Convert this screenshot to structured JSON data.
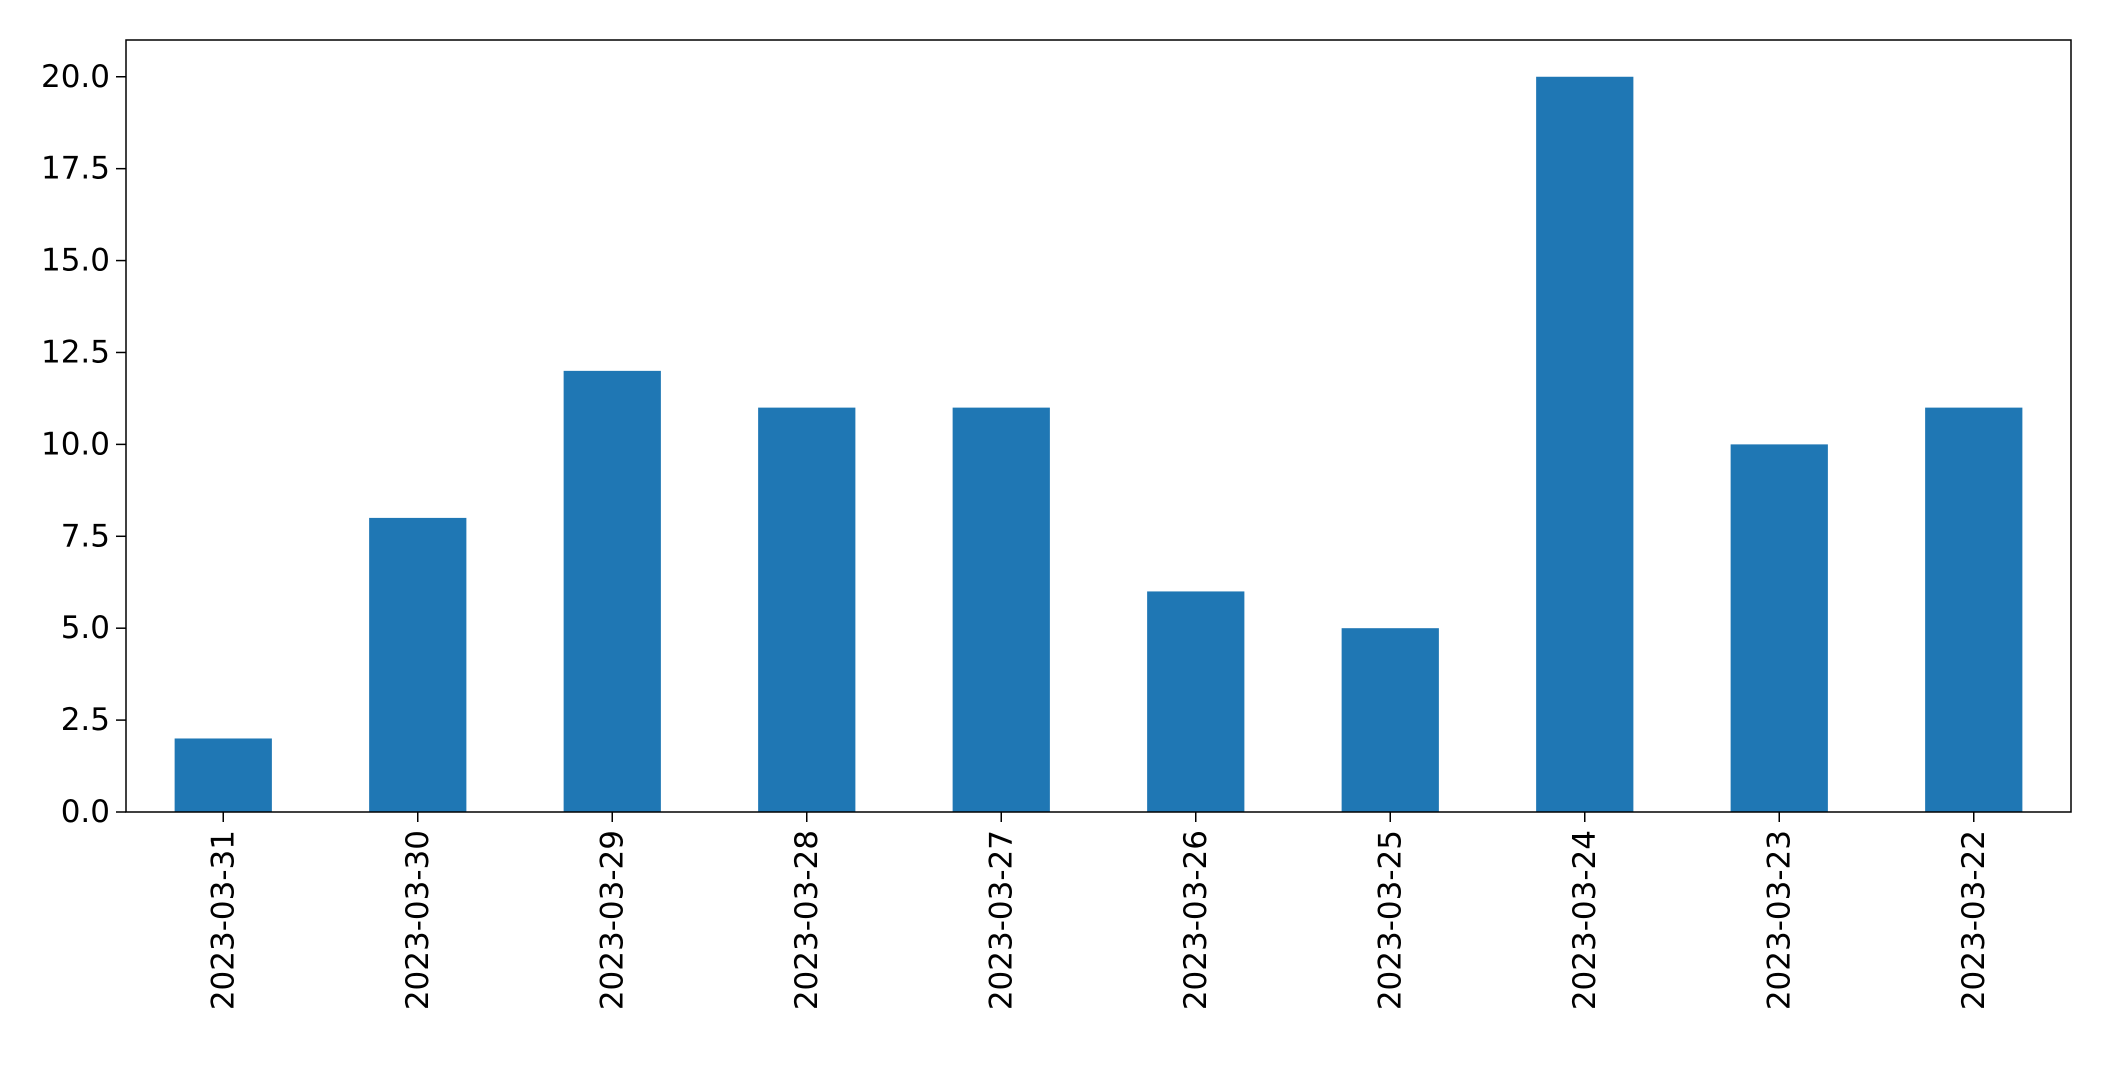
{
  "chart_data": {
    "type": "bar",
    "title": "",
    "xlabel": "",
    "ylabel": "",
    "categories": [
      "2023-03-31",
      "2023-03-30",
      "2023-03-29",
      "2023-03-28",
      "2023-03-27",
      "2023-03-26",
      "2023-03-25",
      "2023-03-24",
      "2023-03-23",
      "2023-03-22"
    ],
    "values": [
      2,
      8,
      12,
      11,
      11,
      6,
      5,
      20,
      10,
      11
    ],
    "ylim": [
      0,
      21
    ],
    "yticks": [
      0,
      2.5,
      5,
      7.5,
      10,
      12.5,
      15,
      17.5,
      20
    ],
    "ytick_labels": [
      "0.0",
      "2.5",
      "5.0",
      "7.5",
      "10.0",
      "12.5",
      "15.0",
      "17.5",
      "20.0"
    ],
    "grid": false,
    "legend": "none",
    "bar_color": "#1f77b4"
  }
}
